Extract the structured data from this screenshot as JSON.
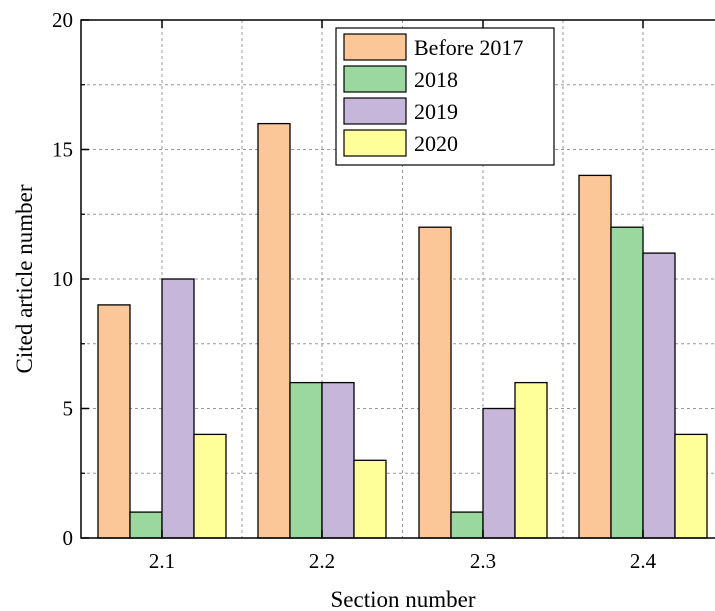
{
  "chart_data": {
    "type": "bar",
    "xlabel": "Section number",
    "ylabel": "Cited article number",
    "categories": [
      "2.1",
      "2.2",
      "2.3",
      "2.4"
    ],
    "series": [
      {
        "name": "Before 2017",
        "color": "#fbc799",
        "values": [
          9,
          16,
          12,
          14
        ]
      },
      {
        "name": "2018",
        "color": "#9bd8a0",
        "values": [
          1,
          6,
          1,
          12
        ]
      },
      {
        "name": "2019",
        "color": "#c6b7da",
        "values": [
          10,
          6,
          5,
          11
        ]
      },
      {
        "name": "2020",
        "color": "#ffff99",
        "values": [
          4,
          3,
          6,
          4
        ]
      }
    ],
    "ylim": [
      0,
      20
    ],
    "yticks": [
      "0",
      "5",
      "10",
      "15",
      "20"
    ],
    "grid": true,
    "legend_position": "top-right"
  }
}
